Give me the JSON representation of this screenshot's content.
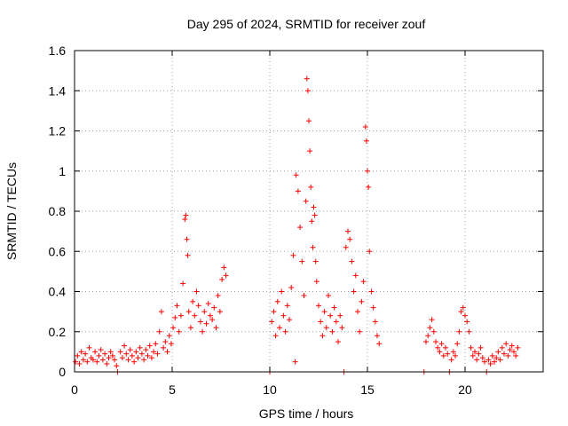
{
  "chart_data": {
    "type": "scatter",
    "title": "Day 295 of 2024, SRMTID for receiver zouf",
    "xlabel": "GPS time / hours",
    "ylabel": "SRMTID / TECUs",
    "xlim": [
      0,
      24
    ],
    "ylim": [
      0,
      1.6
    ],
    "xticks": [
      0,
      5,
      10,
      15,
      20
    ],
    "xtick_labels": [
      "0",
      "5",
      "10",
      "15",
      "20"
    ],
    "yticks": [
      0,
      0.2,
      0.4,
      0.6,
      0.8,
      1.0,
      1.2,
      1.4,
      1.6
    ],
    "ytick_labels": [
      "0",
      "0.2",
      "0.4",
      "0.6",
      "0.8",
      "1",
      "1.2",
      "1.4",
      "1.6"
    ],
    "grid": true,
    "marker": "+",
    "color": "#ff0000",
    "series": [
      {
        "name": "SRMTID",
        "points": [
          [
            0.05,
            0.05
          ],
          [
            0.15,
            0.08
          ],
          [
            0.25,
            0.04
          ],
          [
            0.35,
            0.1
          ],
          [
            0.45,
            0.06
          ],
          [
            0.55,
            0.09
          ],
          [
            0.65,
            0.05
          ],
          [
            0.75,
            0.12
          ],
          [
            0.85,
            0.07
          ],
          [
            0.95,
            0.06
          ],
          [
            1.05,
            0.1
          ],
          [
            1.15,
            0.05
          ],
          [
            1.25,
            0.08
          ],
          [
            1.35,
            0.11
          ],
          [
            1.45,
            0.06
          ],
          [
            1.55,
            0.09
          ],
          [
            1.65,
            0.04
          ],
          [
            1.75,
            0.07
          ],
          [
            1.85,
            0.1
          ],
          [
            1.95,
            0.08
          ],
          [
            2.05,
            0.06
          ],
          [
            2.15,
            0.03
          ],
          [
            2.2,
            0.0
          ],
          [
            2.35,
            0.1
          ],
          [
            2.45,
            0.07
          ],
          [
            2.55,
            0.13
          ],
          [
            2.65,
            0.09
          ],
          [
            2.75,
            0.06
          ],
          [
            2.85,
            0.11
          ],
          [
            2.95,
            0.08
          ],
          [
            3.05,
            0.05
          ],
          [
            3.15,
            0.1
          ],
          [
            3.25,
            0.07
          ],
          [
            3.35,
            0.12
          ],
          [
            3.45,
            0.09
          ],
          [
            3.55,
            0.06
          ],
          [
            3.65,
            0.11
          ],
          [
            3.75,
            0.08
          ],
          [
            3.85,
            0.13
          ],
          [
            3.95,
            0.07
          ],
          [
            4.05,
            0.1
          ],
          [
            4.15,
            0.14
          ],
          [
            4.25,
            0.09
          ],
          [
            4.35,
            0.2
          ],
          [
            4.45,
            0.3
          ],
          [
            4.55,
            0.12
          ],
          [
            4.65,
            0.15
          ],
          [
            4.75,
            0.1
          ],
          [
            4.85,
            0.18
          ],
          [
            4.95,
            0.14
          ],
          [
            5.05,
            0.22
          ],
          [
            5.15,
            0.27
          ],
          [
            5.25,
            0.33
          ],
          [
            5.35,
            0.2
          ],
          [
            5.45,
            0.28
          ],
          [
            5.55,
            0.44
          ],
          [
            5.65,
            0.76
          ],
          [
            5.7,
            0.78
          ],
          [
            5.75,
            0.66
          ],
          [
            5.8,
            0.58
          ],
          [
            5.85,
            0.3
          ],
          [
            5.95,
            0.22
          ],
          [
            6.05,
            0.35
          ],
          [
            6.15,
            0.28
          ],
          [
            6.25,
            0.4
          ],
          [
            6.35,
            0.33
          ],
          [
            6.45,
            0.25
          ],
          [
            6.55,
            0.2
          ],
          [
            6.65,
            0.3
          ],
          [
            6.75,
            0.24
          ],
          [
            6.85,
            0.34
          ],
          [
            6.95,
            0.28
          ],
          [
            7.05,
            0.26
          ],
          [
            7.15,
            0.32
          ],
          [
            7.25,
            0.22
          ],
          [
            7.35,
            0.38
          ],
          [
            7.45,
            0.3
          ],
          [
            7.55,
            0.46
          ],
          [
            7.65,
            0.52
          ],
          [
            7.75,
            0.48
          ],
          [
            10.0,
            0.0
          ],
          [
            10.1,
            0.25
          ],
          [
            10.2,
            0.3
          ],
          [
            10.3,
            0.18
          ],
          [
            10.4,
            0.35
          ],
          [
            10.5,
            0.22
          ],
          [
            10.6,
            0.4
          ],
          [
            10.7,
            0.28
          ],
          [
            10.8,
            0.2
          ],
          [
            10.9,
            0.33
          ],
          [
            11.0,
            0.26
          ],
          [
            11.1,
            0.42
          ],
          [
            11.2,
            0.58
          ],
          [
            11.3,
            0.05
          ],
          [
            11.35,
            0.98
          ],
          [
            11.45,
            0.9
          ],
          [
            11.55,
            0.72
          ],
          [
            11.65,
            0.55
          ],
          [
            11.75,
            0.38
          ],
          [
            11.85,
            0.85
          ],
          [
            11.9,
            1.46
          ],
          [
            11.95,
            1.4
          ],
          [
            12.0,
            1.25
          ],
          [
            12.05,
            1.1
          ],
          [
            12.1,
            0.92
          ],
          [
            12.15,
            0.75
          ],
          [
            12.2,
            0.62
          ],
          [
            12.25,
            0.82
          ],
          [
            12.3,
            0.78
          ],
          [
            12.35,
            0.55
          ],
          [
            12.4,
            0.45
          ],
          [
            12.5,
            0.33
          ],
          [
            12.6,
            0.25
          ],
          [
            12.7,
            0.18
          ],
          [
            12.8,
            0.3
          ],
          [
            12.9,
            0.22
          ],
          [
            13.0,
            0.38
          ],
          [
            13.1,
            0.28
          ],
          [
            13.2,
            0.2
          ],
          [
            13.3,
            0.32
          ],
          [
            13.4,
            0.25
          ],
          [
            13.5,
            0.15
          ],
          [
            13.6,
            0.28
          ],
          [
            13.7,
            0.22
          ],
          [
            13.8,
            0.0
          ],
          [
            13.9,
            0.62
          ],
          [
            14.0,
            0.7
          ],
          [
            14.1,
            0.66
          ],
          [
            14.2,
            0.55
          ],
          [
            14.3,
            0.4
          ],
          [
            14.4,
            0.48
          ],
          [
            14.5,
            0.3
          ],
          [
            14.6,
            0.2
          ],
          [
            14.7,
            0.35
          ],
          [
            14.8,
            0.45
          ],
          [
            14.9,
            1.22
          ],
          [
            14.95,
            1.15
          ],
          [
            15.0,
            1.0
          ],
          [
            15.05,
            0.92
          ],
          [
            15.1,
            0.6
          ],
          [
            15.2,
            0.4
          ],
          [
            15.3,
            0.32
          ],
          [
            15.4,
            0.25
          ],
          [
            15.5,
            0.18
          ],
          [
            15.6,
            0.14
          ],
          [
            17.9,
            0.0
          ],
          [
            18.0,
            0.15
          ],
          [
            18.1,
            0.18
          ],
          [
            18.2,
            0.22
          ],
          [
            18.3,
            0.26
          ],
          [
            18.4,
            0.2
          ],
          [
            18.5,
            0.15
          ],
          [
            18.6,
            0.12
          ],
          [
            18.7,
            0.1
          ],
          [
            18.8,
            0.14
          ],
          [
            18.9,
            0.08
          ],
          [
            19.0,
            0.12
          ],
          [
            19.1,
            0.09
          ],
          [
            19.2,
            0.0
          ],
          [
            19.3,
            0.06
          ],
          [
            19.4,
            0.1
          ],
          [
            19.5,
            0.08
          ],
          [
            19.6,
            0.14
          ],
          [
            19.7,
            0.2
          ],
          [
            19.8,
            0.3
          ],
          [
            19.9,
            0.32
          ],
          [
            20.0,
            0.28
          ],
          [
            20.1,
            0.25
          ],
          [
            20.2,
            0.2
          ],
          [
            20.3,
            0.12
          ],
          [
            20.4,
            0.08
          ],
          [
            20.5,
            0.1
          ],
          [
            20.6,
            0.06
          ],
          [
            20.7,
            0.09
          ],
          [
            20.8,
            0.12
          ],
          [
            20.9,
            0.07
          ],
          [
            21.0,
            0.05
          ],
          [
            21.1,
            0.0
          ],
          [
            21.2,
            0.06
          ],
          [
            21.3,
            0.04
          ],
          [
            21.4,
            0.08
          ],
          [
            21.5,
            0.05
          ],
          [
            21.6,
            0.07
          ],
          [
            21.7,
            0.1
          ],
          [
            21.8,
            0.06
          ],
          [
            21.9,
            0.12
          ],
          [
            22.0,
            0.09
          ],
          [
            22.1,
            0.14
          ],
          [
            22.2,
            0.08
          ],
          [
            22.3,
            0.11
          ],
          [
            22.4,
            0.13
          ],
          [
            22.5,
            0.1
          ],
          [
            22.6,
            0.08
          ],
          [
            22.7,
            0.12
          ]
        ]
      }
    ]
  }
}
